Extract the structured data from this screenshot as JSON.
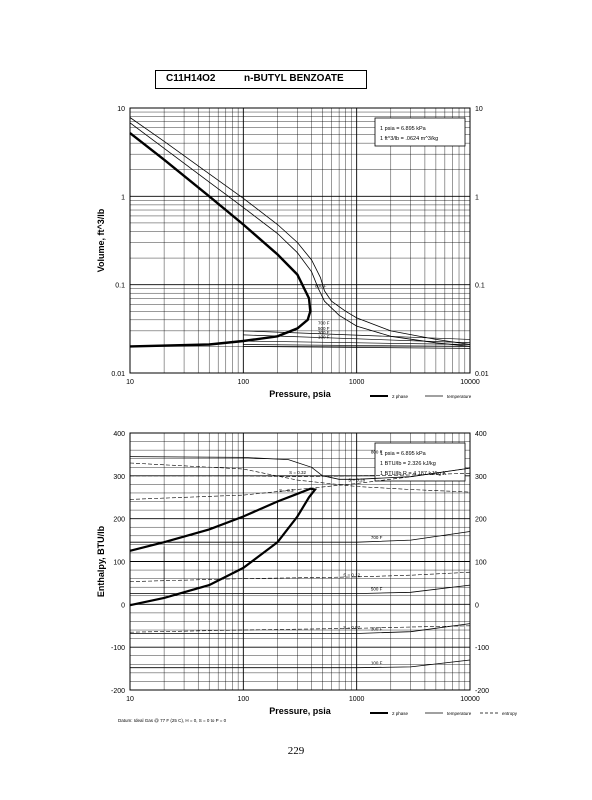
{
  "header": {
    "formula": "C11H14O2",
    "name": "n-BUTYL BENZOATE"
  },
  "page_number": "229",
  "chart_data": [
    {
      "type": "line",
      "xscale": "log",
      "yscale": "log",
      "xlim": [
        10,
        10000
      ],
      "ylim": [
        0.01,
        10
      ],
      "xlabel": "Pressure,  psia",
      "ylabel": "Volume, ft^3/lb",
      "x_ticks": [
        "10",
        "100",
        "1000",
        "10000"
      ],
      "y_ticks": [
        "0.01",
        "0.1",
        "1",
        "10"
      ],
      "conversions": [
        "1 psia = 6.895 kPa",
        "1 ft^3/lb = .0624 m^3/kg"
      ],
      "legend": [
        "2 phase",
        "temperature"
      ],
      "series": [
        {
          "name": "2 phase",
          "style": "thick",
          "points": [
            [
              10,
              5.2
            ],
            [
              20,
              2.6
            ],
            [
              50,
              1.0
            ],
            [
              100,
              0.48
            ],
            [
              200,
              0.22
            ],
            [
              300,
              0.13
            ],
            [
              380,
              0.07
            ],
            [
              390,
              0.05
            ],
            [
              370,
              0.04
            ],
            [
              300,
              0.032
            ],
            [
              200,
              0.026
            ],
            [
              100,
              0.023
            ],
            [
              50,
              0.021
            ],
            [
              10,
              0.02
            ]
          ]
        },
        {
          "name": "",
          "style": "thin",
          "points": [
            [
              10,
              6.8
            ],
            [
              20,
              3.5
            ],
            [
              50,
              1.45
            ],
            [
              100,
              0.75
            ],
            [
              200,
              0.38
            ],
            [
              300,
              0.23
            ],
            [
              400,
              0.14
            ],
            [
              460,
              0.09
            ],
            [
              520,
              0.065
            ],
            [
              700,
              0.045
            ],
            [
              1000,
              0.034
            ],
            [
              2000,
              0.026
            ],
            [
              5000,
              0.022
            ],
            [
              10000,
              0.02
            ]
          ]
        },
        {
          "name": "",
          "style": "thin",
          "points": [
            [
              10,
              7.8
            ],
            [
              20,
              4.2
            ],
            [
              50,
              1.8
            ],
            [
              100,
              0.95
            ],
            [
              200,
              0.48
            ],
            [
              300,
              0.3
            ],
            [
              400,
              0.19
            ],
            [
              480,
              0.12
            ],
            [
              520,
              0.085
            ],
            [
              600,
              0.065
            ],
            [
              800,
              0.05
            ],
            [
              1000,
              0.042
            ],
            [
              2000,
              0.03
            ],
            [
              5000,
              0.024
            ],
            [
              10000,
              0.021
            ]
          ]
        }
      ],
      "isotherm_labels": [
        "800 F",
        "700 F",
        "500 F",
        "300 F",
        "100 F"
      ]
    },
    {
      "type": "line",
      "xscale": "log",
      "yscale": "linear",
      "xlim": [
        10,
        10000
      ],
      "ylim": [
        -200,
        400
      ],
      "xlabel": "Pressure,  psia",
      "ylabel": "Enthalpy, BTU/lb",
      "x_ticks": [
        "10",
        "100",
        "1000",
        "10000"
      ],
      "y_ticks": [
        "400",
        "300",
        "200",
        "100",
        "0",
        "-100",
        "-200"
      ],
      "conversions": [
        "1 psia = 6.895 kPa",
        "1 BTU/lb = 2.326 kJ/kg",
        "1 BTU/lb R = 4.187 kJ/kg K"
      ],
      "legend": [
        "2 phase",
        "temperature",
        "entropy"
      ],
      "datum": "Datum: Ideal Gas @ 77 F (25 C), H = 0, S = 0 to P = 0",
      "isotherms": [
        {
          "name": "100 F",
          "points": [
            [
              10,
              -148
            ],
            [
              1000,
              -148
            ],
            [
              3000,
              -146
            ],
            [
              10000,
              -130
            ]
          ]
        },
        {
          "name": "300 F",
          "points": [
            [
              10,
              -68
            ],
            [
              1000,
              -68
            ],
            [
              3000,
              -64
            ],
            [
              10000,
              -45
            ]
          ]
        },
        {
          "name": "500 F",
          "points": [
            [
              10,
              25
            ],
            [
              200,
              25
            ],
            [
              600,
              25
            ],
            [
              1000,
              25
            ],
            [
              3000,
              28
            ],
            [
              10000,
              45
            ]
          ]
        },
        {
          "name": "700 F",
          "points": [
            [
              10,
              145
            ],
            [
              300,
              145
            ],
            [
              700,
              145
            ],
            [
              1000,
              145
            ],
            [
              3000,
              150
            ],
            [
              10000,
              170
            ]
          ]
        },
        {
          "name": "800 F",
          "points": [
            [
              10,
              345
            ],
            [
              100,
              343
            ],
            [
              250,
              338
            ],
            [
              400,
              320
            ],
            [
              500,
              300
            ],
            [
              700,
              292
            ],
            [
              1000,
              292
            ],
            [
              3000,
              298
            ],
            [
              10000,
              318
            ]
          ]
        }
      ],
      "entropy_lines": [
        {
          "name": "S = 0.32",
          "points": [
            [
              10,
              300
            ],
            [
              100,
              300
            ],
            [
              300,
              298
            ],
            [
              1000,
              300
            ],
            [
              3000,
              302
            ],
            [
              10000,
              306
            ]
          ]
        },
        {
          "name": "S = 0.3",
          "points": [
            [
              10,
              245
            ],
            [
              100,
              255
            ],
            [
              300,
              268
            ],
            [
              1000,
              282
            ],
            [
              3000,
              298
            ],
            [
              10000,
              318
            ]
          ]
        },
        {
          "name": "S = 0.28",
          "points": [
            [
              10,
              330
            ],
            [
              100,
              316
            ],
            [
              300,
              290
            ],
            [
              1000,
              275
            ],
            [
              3000,
              268
            ],
            [
              10000,
              262
            ]
          ]
        },
        {
          "name": "S = 0.12",
          "points": [
            [
              10,
              53
            ],
            [
              100,
              60
            ],
            [
              300,
              62
            ],
            [
              1000,
              64
            ],
            [
              3000,
              68
            ],
            [
              10000,
              75
            ]
          ]
        },
        {
          "name": "S = 0.07",
          "points": [
            [
              10,
              -65
            ],
            [
              100,
              -60
            ],
            [
              300,
              -58
            ],
            [
              1000,
              -56
            ],
            [
              3000,
              -53
            ],
            [
              10000,
              -50
            ]
          ]
        }
      ],
      "dome": [
        [
          10,
          125
        ],
        [
          20,
          145
        ],
        [
          50,
          175
        ],
        [
          100,
          205
        ],
        [
          200,
          240
        ],
        [
          300,
          258
        ],
        [
          390,
          270
        ],
        [
          430,
          268
        ],
        [
          380,
          250
        ],
        [
          300,
          205
        ],
        [
          200,
          145
        ],
        [
          100,
          85
        ],
        [
          50,
          45
        ],
        [
          20,
          15
        ],
        [
          10,
          -2
        ]
      ],
      "legend_extra": []
    }
  ]
}
